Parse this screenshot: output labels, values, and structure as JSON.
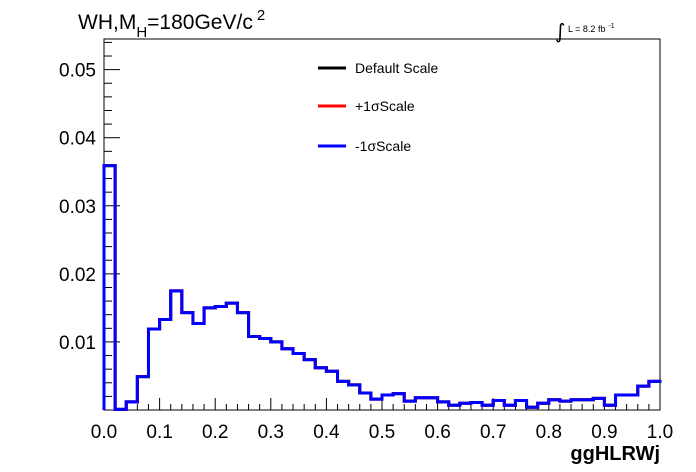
{
  "chart_data": {
    "type": "line",
    "title": {
      "main": "WH,M",
      "sub": "H",
      "rest": "=180GeV/c",
      "sup": "2"
    },
    "lumi": {
      "integral": "∫",
      "text": "L = 8.2 fb",
      "sup": "-1"
    },
    "xlabel": "ggHLRWj",
    "ylabel": "",
    "xlim": [
      0.0,
      1.0
    ],
    "ylim": [
      0.0,
      0.0545
    ],
    "x_ticks": [
      0.0,
      0.1,
      0.2,
      0.3,
      0.4,
      0.5,
      0.6,
      0.7,
      0.8,
      0.9,
      1.0
    ],
    "x_tick_labels": [
      "0.0",
      "0.1",
      "0.2",
      "0.3",
      "0.4",
      "0.5",
      "0.6",
      "0.7",
      "0.8",
      "0.9",
      "1.0"
    ],
    "y_ticks": [
      0.01,
      0.02,
      0.03,
      0.04,
      0.05
    ],
    "y_tick_labels": [
      "0.01",
      "0.02",
      "0.03",
      "0.04",
      "0.05"
    ],
    "grid": false,
    "legend_position": "top-center",
    "bin_edges": [
      0.0,
      0.02,
      0.04,
      0.06,
      0.08,
      0.1,
      0.12,
      0.14,
      0.16,
      0.18,
      0.2,
      0.22,
      0.24,
      0.26,
      0.28,
      0.3,
      0.32,
      0.34,
      0.36,
      0.38,
      0.4,
      0.42,
      0.44,
      0.46,
      0.48,
      0.5,
      0.52,
      0.54,
      0.56,
      0.58,
      0.6,
      0.62,
      0.64,
      0.66,
      0.68,
      0.7,
      0.72,
      0.74,
      0.76,
      0.78,
      0.8,
      0.82,
      0.84,
      0.86,
      0.88,
      0.9,
      0.92,
      0.94,
      0.96,
      0.98,
      1.0
    ],
    "series": [
      {
        "name": "Default Scale",
        "color": "#000000",
        "values": [
          0.0359,
          0.0001,
          0.0012,
          0.0049,
          0.0119,
          0.0133,
          0.0175,
          0.0143,
          0.0127,
          0.015,
          0.0152,
          0.0157,
          0.0143,
          0.0108,
          0.0105,
          0.01,
          0.009,
          0.0083,
          0.0074,
          0.0062,
          0.0057,
          0.0042,
          0.0037,
          0.0025,
          0.0016,
          0.0022,
          0.0024,
          0.0013,
          0.0018,
          0.0018,
          0.0012,
          0.0007,
          0.001,
          0.0011,
          0.0007,
          0.0014,
          0.0007,
          0.0014,
          0.0004,
          0.001,
          0.0015,
          0.0013,
          0.0015,
          0.0015,
          0.0017,
          0.0007,
          0.0022,
          0.0022,
          0.0035,
          0.0042,
          0.004
        ]
      },
      {
        "name": "+1σScale",
        "color": "#ff0000",
        "values": [
          0.0359,
          0.0001,
          0.0012,
          0.0049,
          0.0119,
          0.0133,
          0.0175,
          0.0143,
          0.0127,
          0.015,
          0.0152,
          0.0157,
          0.0143,
          0.0108,
          0.0105,
          0.01,
          0.009,
          0.0083,
          0.0074,
          0.0062,
          0.0057,
          0.0042,
          0.0037,
          0.0025,
          0.0016,
          0.0022,
          0.0024,
          0.0013,
          0.0018,
          0.0018,
          0.0012,
          0.0007,
          0.001,
          0.0011,
          0.0007,
          0.0014,
          0.0007,
          0.0014,
          0.0004,
          0.001,
          0.0015,
          0.0013,
          0.0015,
          0.0015,
          0.0017,
          0.0007,
          0.0022,
          0.0022,
          0.0035,
          0.0042,
          0.004
        ]
      },
      {
        "name": "-1σScale",
        "color": "#0000ff",
        "values": [
          0.0359,
          0.0001,
          0.0012,
          0.0049,
          0.0119,
          0.0133,
          0.0175,
          0.0143,
          0.0127,
          0.015,
          0.0152,
          0.0157,
          0.0143,
          0.0108,
          0.0105,
          0.01,
          0.009,
          0.0083,
          0.0074,
          0.0062,
          0.0057,
          0.0042,
          0.0037,
          0.0025,
          0.0016,
          0.0022,
          0.0024,
          0.0013,
          0.0018,
          0.0018,
          0.0012,
          0.0007,
          0.001,
          0.0011,
          0.0007,
          0.0014,
          0.0007,
          0.0014,
          0.0004,
          0.001,
          0.0015,
          0.0013,
          0.0015,
          0.0015,
          0.0017,
          0.0007,
          0.0022,
          0.0022,
          0.0035,
          0.0042,
          0.004
        ]
      }
    ]
  }
}
